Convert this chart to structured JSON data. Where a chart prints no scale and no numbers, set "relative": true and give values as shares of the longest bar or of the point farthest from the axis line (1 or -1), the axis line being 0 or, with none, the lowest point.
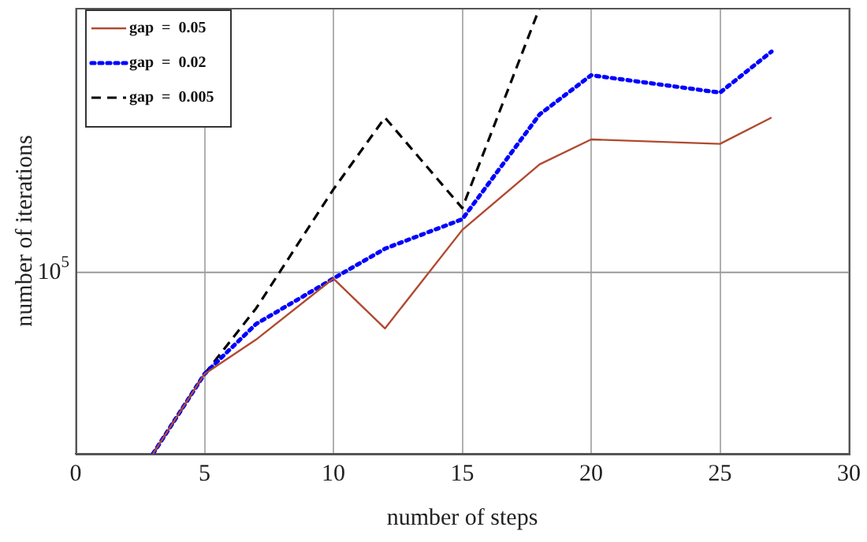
{
  "chart_data": {
    "type": "line",
    "relative": true,
    "xlabel": "number of steps",
    "ylabel": "number of iterations",
    "x": [
      3,
      5,
      7,
      10,
      12,
      15,
      18,
      20,
      25,
      27
    ],
    "xlim": [
      0,
      30
    ],
    "xticks": [
      0,
      5,
      10,
      15,
      20,
      25,
      30
    ],
    "series": [
      {
        "name": "gap  =  0.05",
        "color": "#b04a30",
        "line_style": "solid",
        "values": [
          0,
          0.179,
          0.256,
          0.393,
          0.281,
          0.502,
          0.649,
          0.705,
          0.695,
          0.754
        ]
      },
      {
        "name": "gap  =  0.02",
        "color": "#0000ff",
        "line_style": "dotted",
        "values": [
          0,
          0.179,
          0.291,
          0.393,
          0.46,
          0.526,
          0.761,
          0.849,
          0.81,
          0.902
        ]
      },
      {
        "name": "gap  =  0.005",
        "color": "#000000",
        "line_style": "dashed",
        "x": [
          3,
          5,
          7,
          10,
          12,
          15,
          18
        ],
        "values": [
          0,
          0.179,
          0.326,
          0.593,
          0.754,
          0.551,
          1
        ]
      }
    ],
    "ref_lines": [
      {
        "axis": "y",
        "value": 0.407,
        "color": "#9a9a9a"
      }
    ],
    "annotations": [
      "10$^{5}$"
    ],
    "grid": "x",
    "legend": "top left",
    "marker": "none"
  }
}
